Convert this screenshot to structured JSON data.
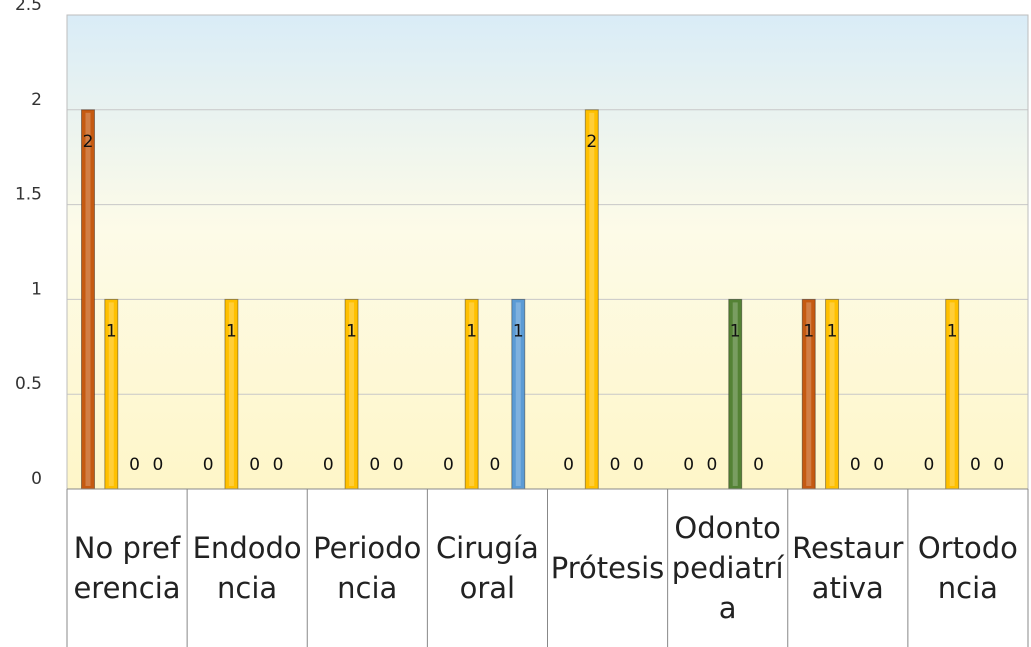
{
  "chart_data": {
    "type": "bar",
    "categories": [
      "No preferencia",
      "Endodoncia",
      "Periodoncia",
      "Cirugía oral",
      "Prótesis",
      "Odontopediatría",
      "Restaurativa",
      "Ortodoncia"
    ],
    "series": [
      {
        "color": "#c55a11",
        "values": [
          2,
          0,
          0,
          0,
          0,
          0,
          1,
          0
        ]
      },
      {
        "color": "#ffc000",
        "values": [
          1,
          1,
          1,
          1,
          2,
          0,
          1,
          1
        ]
      },
      {
        "color": "#548235",
        "values": [
          0,
          0,
          0,
          0,
          0,
          1,
          0,
          0
        ]
      },
      {
        "color": "#5b9bd5",
        "values": [
          0,
          0,
          0,
          1,
          0,
          0,
          0,
          0
        ]
      }
    ],
    "ylim": [
      0,
      2.5
    ],
    "yticks": [
      0,
      0.5,
      1,
      1.5,
      2,
      2.5
    ],
    "grid": true,
    "data_labels": true
  }
}
